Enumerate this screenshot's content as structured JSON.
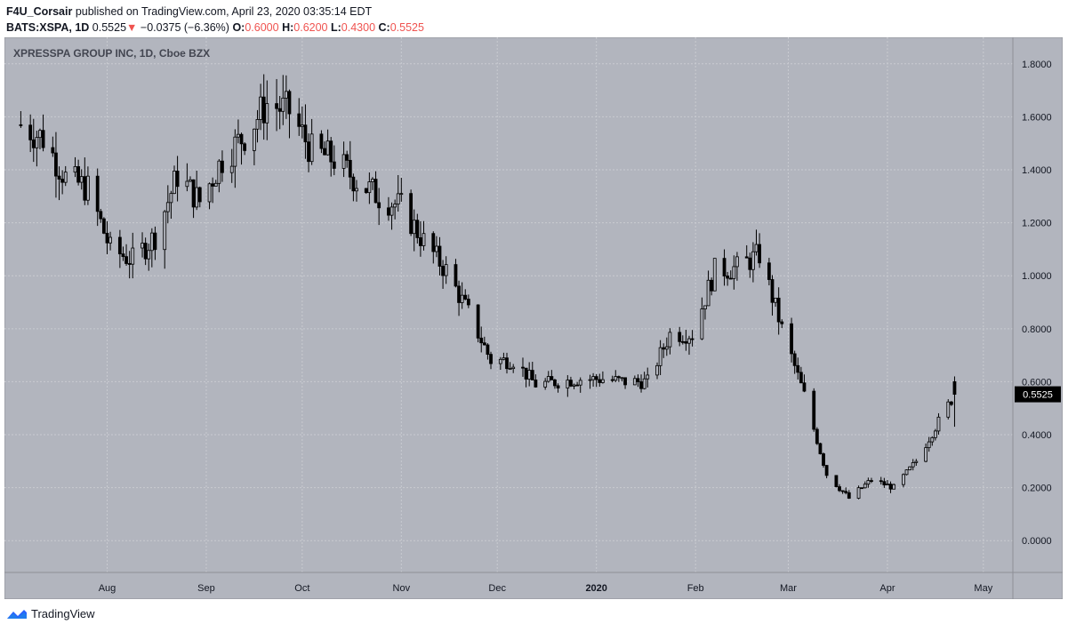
{
  "header": {
    "author": "F4U_Corsair",
    "published_text": "published on TradingView.com, April 23, 2020 03:35:14 EDT",
    "symbol": "BATS:XSPA, 1D",
    "last": "0.5525",
    "change": "−0.0375 (−6.36%)",
    "open_label": "O:",
    "open": "0.6000",
    "high_label": "H:",
    "high": "0.6200",
    "low_label": "L:",
    "low": "0.4300",
    "close_label": "C:",
    "close": "0.5525"
  },
  "chart_title": "XPRESSPA GROUP INC, 1D, Cboe BZX",
  "footer": {
    "brand": "TradingView"
  },
  "colors": {
    "plot_bg": "#b2b5be",
    "candle": "#000000",
    "axis_text": "#131722",
    "last_price_bg": "#000000",
    "change_down": "#ef5350"
  },
  "chart_data": {
    "type": "candlestick",
    "title": "XPRESSPA GROUP INC, 1D, Cboe BZX",
    "ylim": [
      -0.12,
      1.9
    ],
    "y_ticks": [
      "1.8000",
      "1.6000",
      "1.4000",
      "1.2000",
      "1.0000",
      "0.8000",
      "0.6000",
      "0.4000",
      "0.2000",
      "0.0000"
    ],
    "x_ticks": [
      "Aug",
      "Sep",
      "Oct",
      "Nov",
      "Dec",
      "2020",
      "Feb",
      "Mar",
      "Apr",
      "May"
    ],
    "last_price_label": "0.5525",
    "grid": true,
    "series": [
      {
        "date": "2019-07-05",
        "close": 1.57
      },
      {
        "date": "2019-07-12",
        "close": 1.52
      },
      {
        "date": "2019-07-19",
        "close": 1.37
      },
      {
        "date": "2019-07-26",
        "close": 1.33
      },
      {
        "date": "2019-08-02",
        "close": 1.1
      },
      {
        "date": "2019-08-09",
        "close": 1.06
      },
      {
        "date": "2019-08-16",
        "close": 1.15
      },
      {
        "date": "2019-08-23",
        "close": 1.38
      },
      {
        "date": "2019-08-30",
        "close": 1.28
      },
      {
        "date": "2019-09-06",
        "close": 1.44
      },
      {
        "date": "2019-09-13",
        "close": 1.53
      },
      {
        "date": "2019-09-20",
        "close": 1.65
      },
      {
        "date": "2019-09-27",
        "close": 1.62
      },
      {
        "date": "2019-10-04",
        "close": 1.47
      },
      {
        "date": "2019-10-11",
        "close": 1.44
      },
      {
        "date": "2019-10-18",
        "close": 1.36
      },
      {
        "date": "2019-10-25",
        "close": 1.3
      },
      {
        "date": "2019-11-01",
        "close": 1.26
      },
      {
        "date": "2019-11-08",
        "close": 1.13
      },
      {
        "date": "2019-11-15",
        "close": 1.02
      },
      {
        "date": "2019-11-22",
        "close": 0.86
      },
      {
        "date": "2019-11-29",
        "close": 0.68
      },
      {
        "date": "2019-12-06",
        "close": 0.68
      },
      {
        "date": "2019-12-13",
        "close": 0.59
      },
      {
        "date": "2019-12-20",
        "close": 0.6
      },
      {
        "date": "2019-12-27",
        "close": 0.61
      },
      {
        "date": "2020-01-03",
        "close": 0.61
      },
      {
        "date": "2020-01-10",
        "close": 0.6
      },
      {
        "date": "2020-01-17",
        "close": 0.6
      },
      {
        "date": "2020-01-24",
        "close": 0.78
      },
      {
        "date": "2020-01-31",
        "close": 0.78
      },
      {
        "date": "2020-02-07",
        "close": 1.02
      },
      {
        "date": "2020-02-14",
        "close": 1.03
      },
      {
        "date": "2020-02-21",
        "close": 1.08
      },
      {
        "date": "2020-02-28",
        "close": 0.8
      },
      {
        "date": "2020-03-06",
        "close": 0.55
      },
      {
        "date": "2020-03-13",
        "close": 0.25
      },
      {
        "date": "2020-03-20",
        "close": 0.16
      },
      {
        "date": "2020-03-27",
        "close": 0.23
      },
      {
        "date": "2020-04-03",
        "close": 0.2
      },
      {
        "date": "2020-04-10",
        "close": 0.3
      },
      {
        "date": "2020-04-17",
        "close": 0.45
      },
      {
        "date": "2020-04-22",
        "close": 0.5525
      }
    ]
  }
}
